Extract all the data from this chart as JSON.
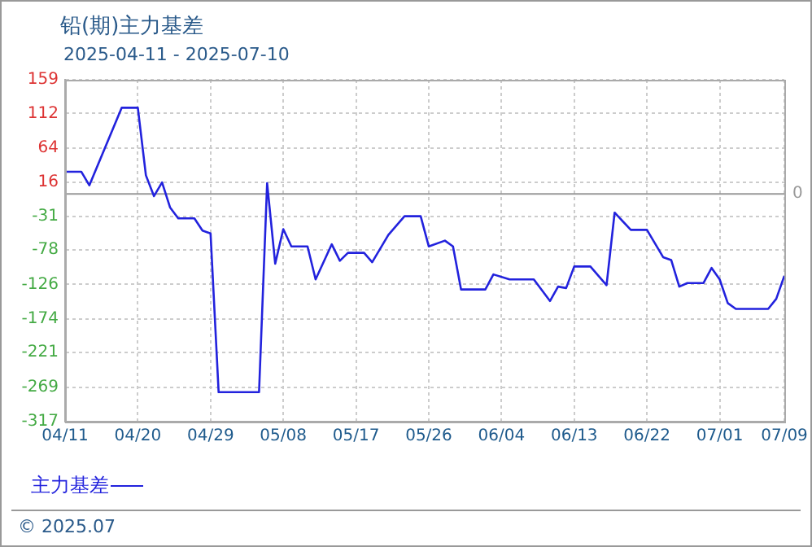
{
  "chart_data": {
    "type": "line",
    "title": "铅(期)主力基差",
    "subtitle": "2025-04-11 - 2025-07-10",
    "annotations": [
      "© 2025.07"
    ],
    "legend": "bottom left",
    "grid": true,
    "marker": "none",
    "line_style": "solid",
    "xlim": [
      "--04-11",
      "--07-09"
    ],
    "xticks": [
      {
        "value": "--04-11",
        "label": "04/11"
      },
      {
        "value": "--04-20",
        "label": "04/20"
      },
      {
        "value": "--04-29",
        "label": "04/29"
      },
      {
        "value": "--05-08",
        "label": "05/08"
      },
      {
        "value": "--05-17",
        "label": "05/17"
      },
      {
        "value": "--05-26",
        "label": "05/26"
      },
      {
        "value": "--06-04",
        "label": "06/04"
      },
      {
        "value": "--06-13",
        "label": "06/13"
      },
      {
        "value": "--06-22",
        "label": "06/22"
      },
      {
        "value": "--07-01",
        "label": "07/01"
      },
      {
        "value": "--07-09",
        "label": "07/09"
      }
    ],
    "ylim": [
      -317,
      159
    ],
    "yticks": [
      -317,
      -269,
      -221,
      -174,
      -126,
      -78,
      -31,
      16,
      64,
      112,
      159
    ],
    "ref_lines": [
      {
        "axis": "y",
        "value": 0,
        "label": "0",
        "color": "#999999"
      }
    ],
    "x": [
      "--04-11",
      "--04-13",
      "--04-14",
      "--04-18",
      "--04-20",
      "--04-21",
      "--04-22",
      "--04-23",
      "--04-24",
      "--04-25",
      "--04-27",
      "--04-28",
      "--04-29",
      "--04-30",
      "--05-05",
      "--05-06",
      "--05-07",
      "--05-08",
      "--05-09",
      "--05-11",
      "--05-12",
      "--05-14",
      "--05-15",
      "--05-16",
      "--05-18",
      "--05-19",
      "--05-21",
      "--05-23",
      "--05-25",
      "--05-26",
      "--05-28",
      "--05-29",
      "--05-30",
      "--06-02",
      "--06-03",
      "--06-05",
      "--06-08",
      "--06-10",
      "--06-11",
      "--06-12",
      "--06-13",
      "--06-15",
      "--06-17",
      "--06-18",
      "--06-20",
      "--06-22",
      "--06-24",
      "--06-25",
      "--06-26",
      "--06-27",
      "--06-29",
      "--06-30",
      "--07-01",
      "--07-02",
      "--07-03",
      "--07-07",
      "--07-08",
      "--07-09"
    ],
    "series": [
      {
        "name": "主力基差",
        "color": "#2222dd",
        "values": [
          31,
          31,
          12,
          120,
          120,
          26,
          -3,
          16,
          -19,
          -34,
          -34,
          -51,
          -55,
          -276,
          -276,
          15,
          -97,
          -49,
          -73,
          -73,
          -119,
          -70,
          -93,
          -82,
          -82,
          -95,
          -57,
          -31,
          -31,
          -73,
          -65,
          -73,
          -133,
          -133,
          -112,
          -119,
          -119,
          -149,
          -129,
          -131,
          -101,
          -101,
          -127,
          -26,
          -50,
          -50,
          -88,
          -92,
          -129,
          -124,
          -124,
          -103,
          -119,
          -152,
          -160,
          -160,
          -146,
          -114
        ]
      }
    ]
  }
}
